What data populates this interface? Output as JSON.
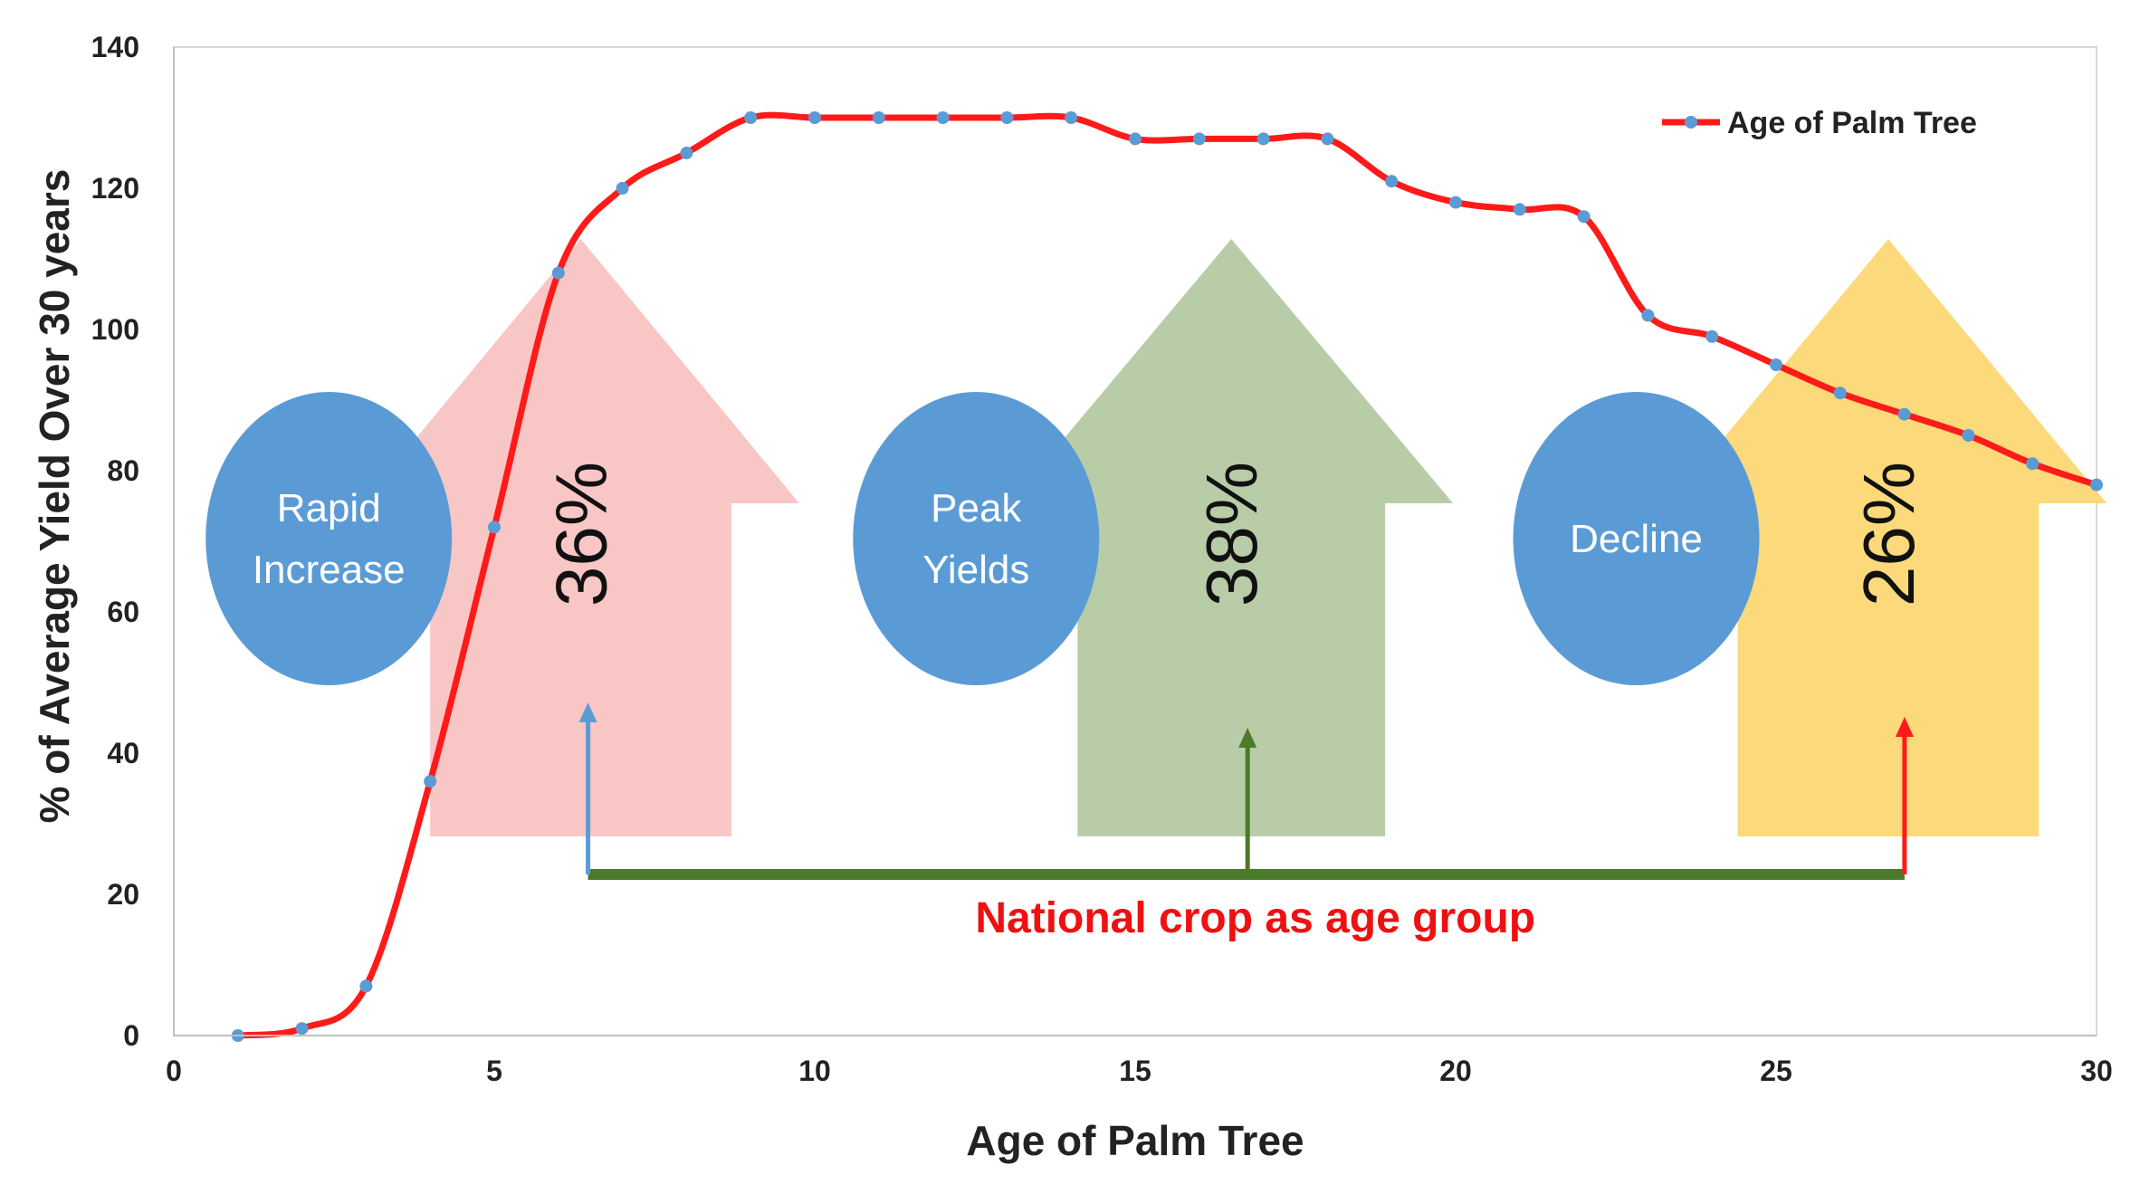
{
  "chart_data": {
    "type": "line",
    "title": "",
    "xlabel": "Age of Palm Tree",
    "ylabel": "% of Average Yield Over 30 years",
    "xlim": [
      0,
      30
    ],
    "ylim": [
      0,
      140
    ],
    "xticks": [
      0,
      5,
      10,
      15,
      20,
      25,
      30
    ],
    "yticks": [
      0,
      20,
      40,
      60,
      80,
      100,
      120,
      140
    ],
    "legend": {
      "label": "Age of Palm Tree",
      "position": "top-right"
    },
    "series": [
      {
        "name": "Age of Palm Tree",
        "color": "#ff1a1a",
        "marker_color": "#5b9bd5",
        "x": [
          1,
          2,
          3,
          4,
          5,
          6,
          7,
          8,
          9,
          10,
          11,
          12,
          13,
          14,
          15,
          16,
          17,
          18,
          19,
          20,
          21,
          22,
          23,
          24,
          25,
          26,
          27,
          28,
          29,
          30
        ],
        "y": [
          0,
          1,
          7,
          36,
          72,
          108,
          120,
          125,
          130,
          130,
          130,
          130,
          130,
          130,
          127,
          127,
          127,
          127,
          121,
          118,
          117,
          116,
          102,
          99,
          95,
          91,
          88,
          85,
          81,
          78
        ]
      }
    ],
    "phases": [
      {
        "name": "Rapid\nIncrease",
        "percent": "36%",
        "color": "#f9c6c6",
        "x_from": 4,
        "x_to": 8.7
      },
      {
        "name": "Peak\nYields",
        "percent": "38%",
        "color": "#b9cca8",
        "x_from": 14.1,
        "x_to": 18.9
      },
      {
        "name": "Decline",
        "percent": "26%",
        "color": "#fcd97a",
        "x_from": 24.4,
        "x_to": 29.1
      }
    ],
    "phase_circle_color": "#5b9bd5",
    "annotation": {
      "text": "National crop as age group",
      "color": "#ee1111",
      "bracket_color": "#4a7a2a",
      "arrow_colors": [
        "#5b9bd5",
        "#4a7a2a",
        "#ff1a1a"
      ]
    }
  }
}
